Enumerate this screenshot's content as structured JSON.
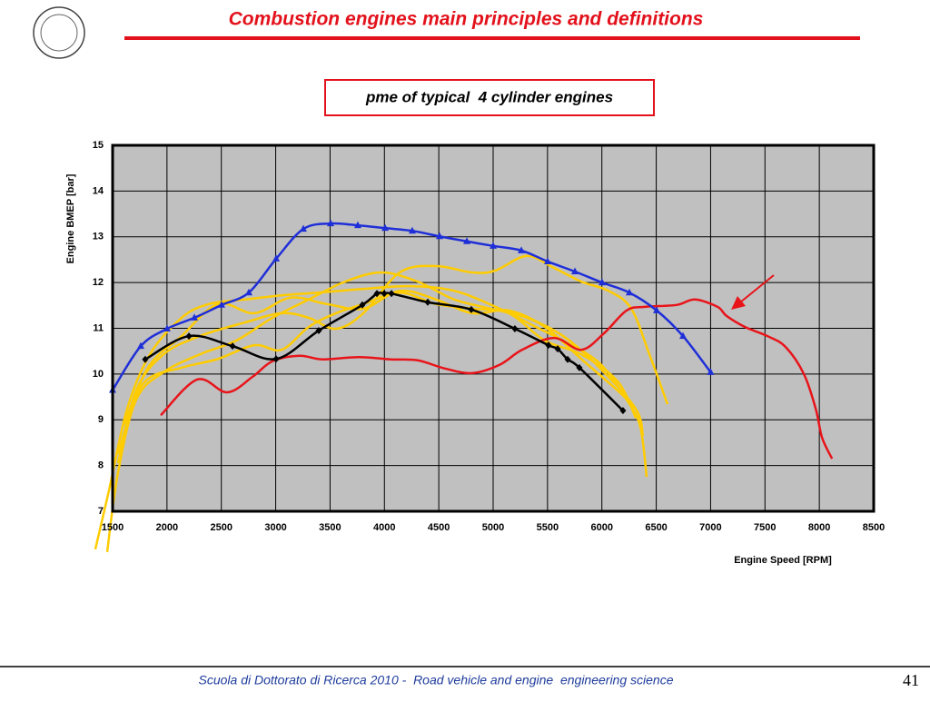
{
  "header": {
    "title": "Combustion engines main principles and definitions"
  },
  "chart_data": {
    "type": "line",
    "title": "pme of typical  4 cylinder engines",
    "xlabel": "Engine Speed [RPM]",
    "ylabel": "Engine BMEP [bar]",
    "xlim": [
      1500,
      8500
    ],
    "ylim": [
      7,
      15
    ],
    "xticks": [
      1500,
      2000,
      2500,
      3000,
      3500,
      4000,
      4500,
      5000,
      5500,
      6000,
      6500,
      7000,
      7500,
      8000,
      8500
    ],
    "yticks": [
      7,
      8,
      9,
      10,
      11,
      12,
      13,
      14,
      15
    ],
    "grid": true,
    "series": [
      {
        "color": "#ffcc00",
        "x": [
          1341,
          1467,
          1634,
          1843,
          2135,
          2386,
          2720,
          3054,
          3388,
          3806,
          4223,
          4641,
          5059,
          5393,
          5644,
          5978,
          6228,
          6353,
          6412
        ],
        "values": [
          6.17,
          7.46,
          9.24,
          10.43,
          11.23,
          11.53,
          11.63,
          11.72,
          11.78,
          11.86,
          11.92,
          11.82,
          11.43,
          11.03,
          10.73,
          10.24,
          9.44,
          8.85,
          7.75
        ]
      },
      {
        "color": "#ffcc00",
        "x": [
          1450,
          1550,
          1717,
          1968,
          2302,
          2636,
          2970,
          3304,
          3639,
          3972,
          4306,
          4641,
          4975,
          5309,
          5644,
          5978,
          6312,
          6378
        ],
        "values": [
          6.11,
          7.85,
          9.44,
          10.04,
          10.43,
          10.73,
          11.23,
          11.63,
          12.02,
          12.22,
          12.02,
          11.63,
          11.43,
          11.23,
          10.83,
          10.14,
          9.24,
          8.65
        ]
      },
      {
        "color": "#ffcc00",
        "x": [
          1550,
          1717,
          1968,
          2302,
          2720,
          3054,
          3304,
          3555,
          3806,
          4140,
          4474,
          4808,
          5017,
          5309,
          5560,
          5811,
          6061,
          6270,
          6437,
          6604
        ],
        "values": [
          8.05,
          9.64,
          10.43,
          10.83,
          11.13,
          11.33,
          11.23,
          10.99,
          11.33,
          12.22,
          12.36,
          12.22,
          12.26,
          12.58,
          12.32,
          12.02,
          11.82,
          11.43,
          10.43,
          9.34
        ]
      },
      {
        "color": "#ffcc00",
        "x": [
          1592,
          1800,
          2135,
          2469,
          2803,
          3054,
          3304,
          3555,
          3806,
          4140,
          4474,
          4808,
          5142,
          5476,
          5810,
          6145,
          6312
        ],
        "values": [
          8.85,
          9.84,
          10.14,
          10.33,
          10.63,
          10.53,
          11.03,
          11.33,
          11.53,
          11.78,
          11.53,
          11.43,
          11.33,
          10.73,
          10.43,
          9.84,
          9.04
        ]
      },
      {
        "color": "#ffcc00",
        "x": [
          1550,
          1800,
          2135,
          2469,
          2803,
          3137,
          3471,
          3806,
          4140,
          4474,
          4808,
          5142,
          5476,
          5810,
          6145,
          6312
        ],
        "values": [
          8.25,
          10.04,
          10.83,
          11.53,
          11.33,
          11.67,
          11.53,
          11.43,
          11.82,
          11.63,
          11.33,
          11.39,
          11.03,
          10.33,
          9.64,
          9.24
        ]
      },
      {
        "color": "#e8141a",
        "x": [
          1943,
          2277,
          2553,
          2787,
          2970,
          3221,
          3430,
          3764,
          4056,
          4306,
          4557,
          4808,
          5058,
          5267,
          5559,
          5810,
          6019,
          6228,
          6395,
          6688,
          6855,
          7063,
          7147,
          7315,
          7523,
          7690,
          7858,
          7967,
          8025,
          8117
        ],
        "values": [
          9.1,
          9.88,
          9.6,
          9.94,
          10.28,
          10.4,
          10.32,
          10.37,
          10.32,
          10.3,
          10.12,
          10.02,
          10.2,
          10.53,
          10.79,
          10.53,
          10.89,
          11.39,
          11.47,
          11.51,
          11.63,
          11.47,
          11.27,
          11.03,
          10.83,
          10.59,
          10.0,
          9.24,
          8.61,
          8.15
        ]
      },
      {
        "color": "#1f2fd8",
        "marker": "triangle",
        "x": [
          1500,
          1759,
          2001,
          2252,
          2502,
          2753,
          3004,
          3254,
          3505,
          3755,
          4006,
          4256,
          4507,
          4758,
          5000,
          5259,
          5501,
          5752,
          6002,
          6253,
          6504,
          6746,
          7000
        ],
        "values": [
          9.65,
          10.61,
          10.99,
          11.23,
          11.51,
          11.78,
          12.52,
          13.17,
          13.29,
          13.25,
          13.19,
          13.13,
          13.01,
          12.9,
          12.8,
          12.7,
          12.46,
          12.24,
          12.0,
          11.78,
          11.39,
          10.83,
          10.04
        ]
      },
      {
        "color": "#000000",
        "marker": "diamond",
        "x": [
          1800,
          2202,
          2603,
          3004,
          3396,
          3797,
          3931,
          3998,
          4065,
          4398,
          4799,
          5200,
          5509,
          5593,
          5685,
          5793,
          6194
        ],
        "values": [
          10.32,
          10.83,
          10.61,
          10.33,
          10.95,
          11.51,
          11.76,
          11.76,
          11.76,
          11.57,
          11.41,
          10.99,
          10.63,
          10.55,
          10.32,
          10.14,
          9.2
        ]
      }
    ]
  },
  "footer": {
    "text": "Scuola di Dottorato di Ricerca 2010 -  Road vehicle and engine  engineering science",
    "page": "41"
  }
}
